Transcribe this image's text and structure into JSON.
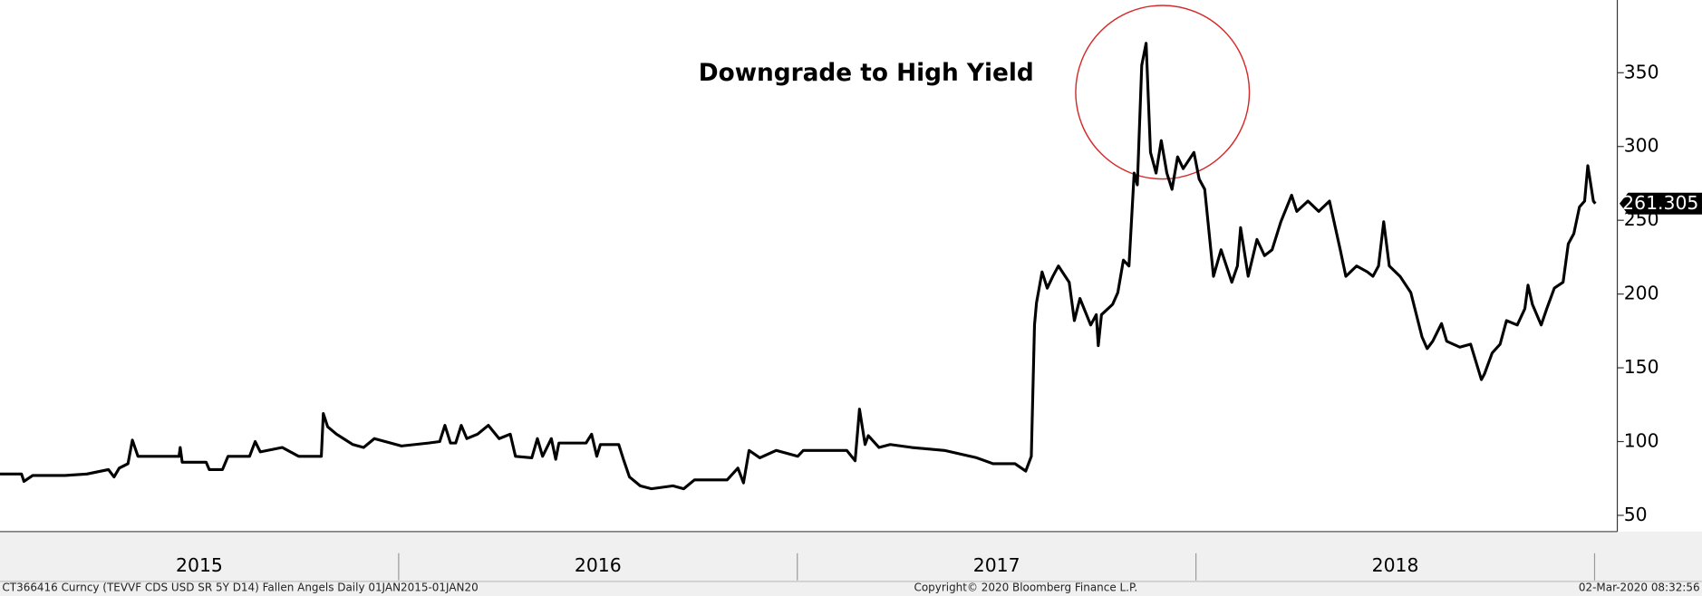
{
  "chart_data": {
    "type": "line",
    "annotation": "Downgrade to High Yield",
    "source": "CT366416 Curncy (TEVVF CDS USD SR 5Y D14) Fallen Angels  Daily 01JAN2015-01JAN20",
    "copyright": "Copyright© 2020 Bloomberg Finance L.P.",
    "timestamp": "02-Mar-2020 08:32:56",
    "color": "#000000",
    "x": [
      2015.0,
      2015.054,
      2015.06,
      2015.082,
      2015.163,
      2015.218,
      2015.272,
      2015.286,
      2015.299,
      2015.321,
      2015.332,
      2015.346,
      2015.449,
      2015.452,
      2015.457,
      2015.517,
      2015.525,
      2015.558,
      2015.572,
      2015.626,
      2015.64,
      2015.653,
      2015.708,
      2015.749,
      2015.79,
      2015.806,
      2015.811,
      2015.822,
      2015.844,
      2015.885,
      2015.912,
      2015.939,
      2015.98,
      2016.007,
      2016.075,
      2016.103,
      2016.116,
      2016.13,
      2016.143,
      2016.157,
      2016.171,
      2016.198,
      2016.225,
      2016.252,
      2016.28,
      2016.293,
      2016.334,
      2016.348,
      2016.361,
      2016.383,
      2016.394,
      2016.402,
      2016.47,
      2016.484,
      2016.497,
      2016.506,
      2016.552,
      2016.565,
      2016.579,
      2016.606,
      2016.634,
      2016.688,
      2016.715,
      2016.742,
      2016.824,
      2016.851,
      2016.865,
      2016.879,
      2016.906,
      2016.947,
      2017.001,
      2017.015,
      2017.124,
      2017.145,
      2017.156,
      2017.17,
      2017.178,
      2017.205,
      2017.233,
      2017.287,
      2017.369,
      2017.45,
      2017.491,
      2017.546,
      2017.573,
      2017.587,
      2017.595,
      2017.6,
      2017.614,
      2017.627,
      2017.641,
      2017.655,
      2017.682,
      2017.695,
      2017.709,
      2017.736,
      2017.75,
      2017.755,
      2017.763,
      2017.791,
      2017.804,
      2017.818,
      2017.832,
      2017.845,
      2017.853,
      2017.864,
      2017.875,
      2017.886,
      2017.9,
      2017.913,
      2017.927,
      2017.94,
      2017.954,
      2017.968,
      2017.995,
      2018.008,
      2018.022,
      2018.044,
      2018.063,
      2018.09,
      2018.104,
      2018.112,
      2018.131,
      2018.153,
      2018.172,
      2018.191,
      2018.213,
      2018.24,
      2018.253,
      2018.281,
      2018.308,
      2018.335,
      2018.362,
      2018.376,
      2018.403,
      2018.43,
      2018.444,
      2018.458,
      2018.471,
      2018.485,
      2018.512,
      2018.539,
      2018.567,
      2018.58,
      2018.594,
      2018.616,
      2018.629,
      2018.662,
      2018.689,
      2018.716,
      2018.724,
      2018.743,
      2018.763,
      2018.779,
      2018.806,
      2018.825,
      2018.833,
      2018.844,
      2018.866,
      2018.88,
      2018.899,
      2018.921,
      2018.934,
      2018.948,
      2018.962,
      2018.975,
      2018.983,
      2018.997,
      2019.002
    ],
    "values": [
      78,
      78,
      73,
      77,
      77,
      78,
      81,
      76,
      82,
      85,
      101,
      90,
      90,
      96,
      86,
      86,
      81,
      81,
      90,
      90,
      100,
      93,
      96,
      90,
      90,
      90,
      119,
      110,
      105,
      98,
      96,
      102,
      99,
      97,
      99,
      100,
      111,
      99,
      99,
      111,
      102,
      105,
      111,
      102,
      105,
      90,
      89,
      102,
      90,
      102,
      88,
      99,
      99,
      105,
      90,
      98,
      98,
      87,
      76,
      70,
      68,
      70,
      68,
      74,
      74,
      82,
      72,
      94,
      89,
      94,
      90,
      94,
      94,
      87,
      122,
      98,
      104,
      96,
      98,
      96,
      94,
      89,
      85,
      85,
      80,
      90,
      179,
      194,
      215,
      204,
      212,
      219,
      208,
      182,
      197,
      179,
      186,
      165,
      186,
      193,
      201,
      223,
      219,
      282,
      274,
      355,
      370,
      296,
      282,
      304,
      282,
      271,
      293,
      285,
      296,
      278,
      271,
      212,
      230,
      208,
      219,
      245,
      212,
      237,
      226,
      230,
      249,
      267,
      256,
      263,
      256,
      263,
      230,
      212,
      219,
      215,
      212,
      219,
      249,
      219,
      212,
      201,
      171,
      163,
      168,
      180,
      168,
      164,
      166,
      142,
      146,
      160,
      166,
      182,
      179,
      190,
      206,
      193,
      179,
      190,
      204,
      208,
      234,
      241,
      259,
      263,
      287,
      263,
      261.305
    ],
    "xlim": [
      2015.0,
      2019.057
    ],
    "xticks": [
      2016,
      2017,
      2018,
      2019
    ],
    "xtick_labels": [
      {
        "value": 2015.5,
        "label": "2015"
      },
      {
        "value": 2016.5,
        "label": "2016"
      },
      {
        "value": 2017.5,
        "label": "2017"
      },
      {
        "value": 2018.5,
        "label": "2018"
      }
    ],
    "ylim": [
      39,
      399.3
    ],
    "yticks": [
      50,
      100,
      150,
      200,
      250,
      300,
      350
    ]
  }
}
